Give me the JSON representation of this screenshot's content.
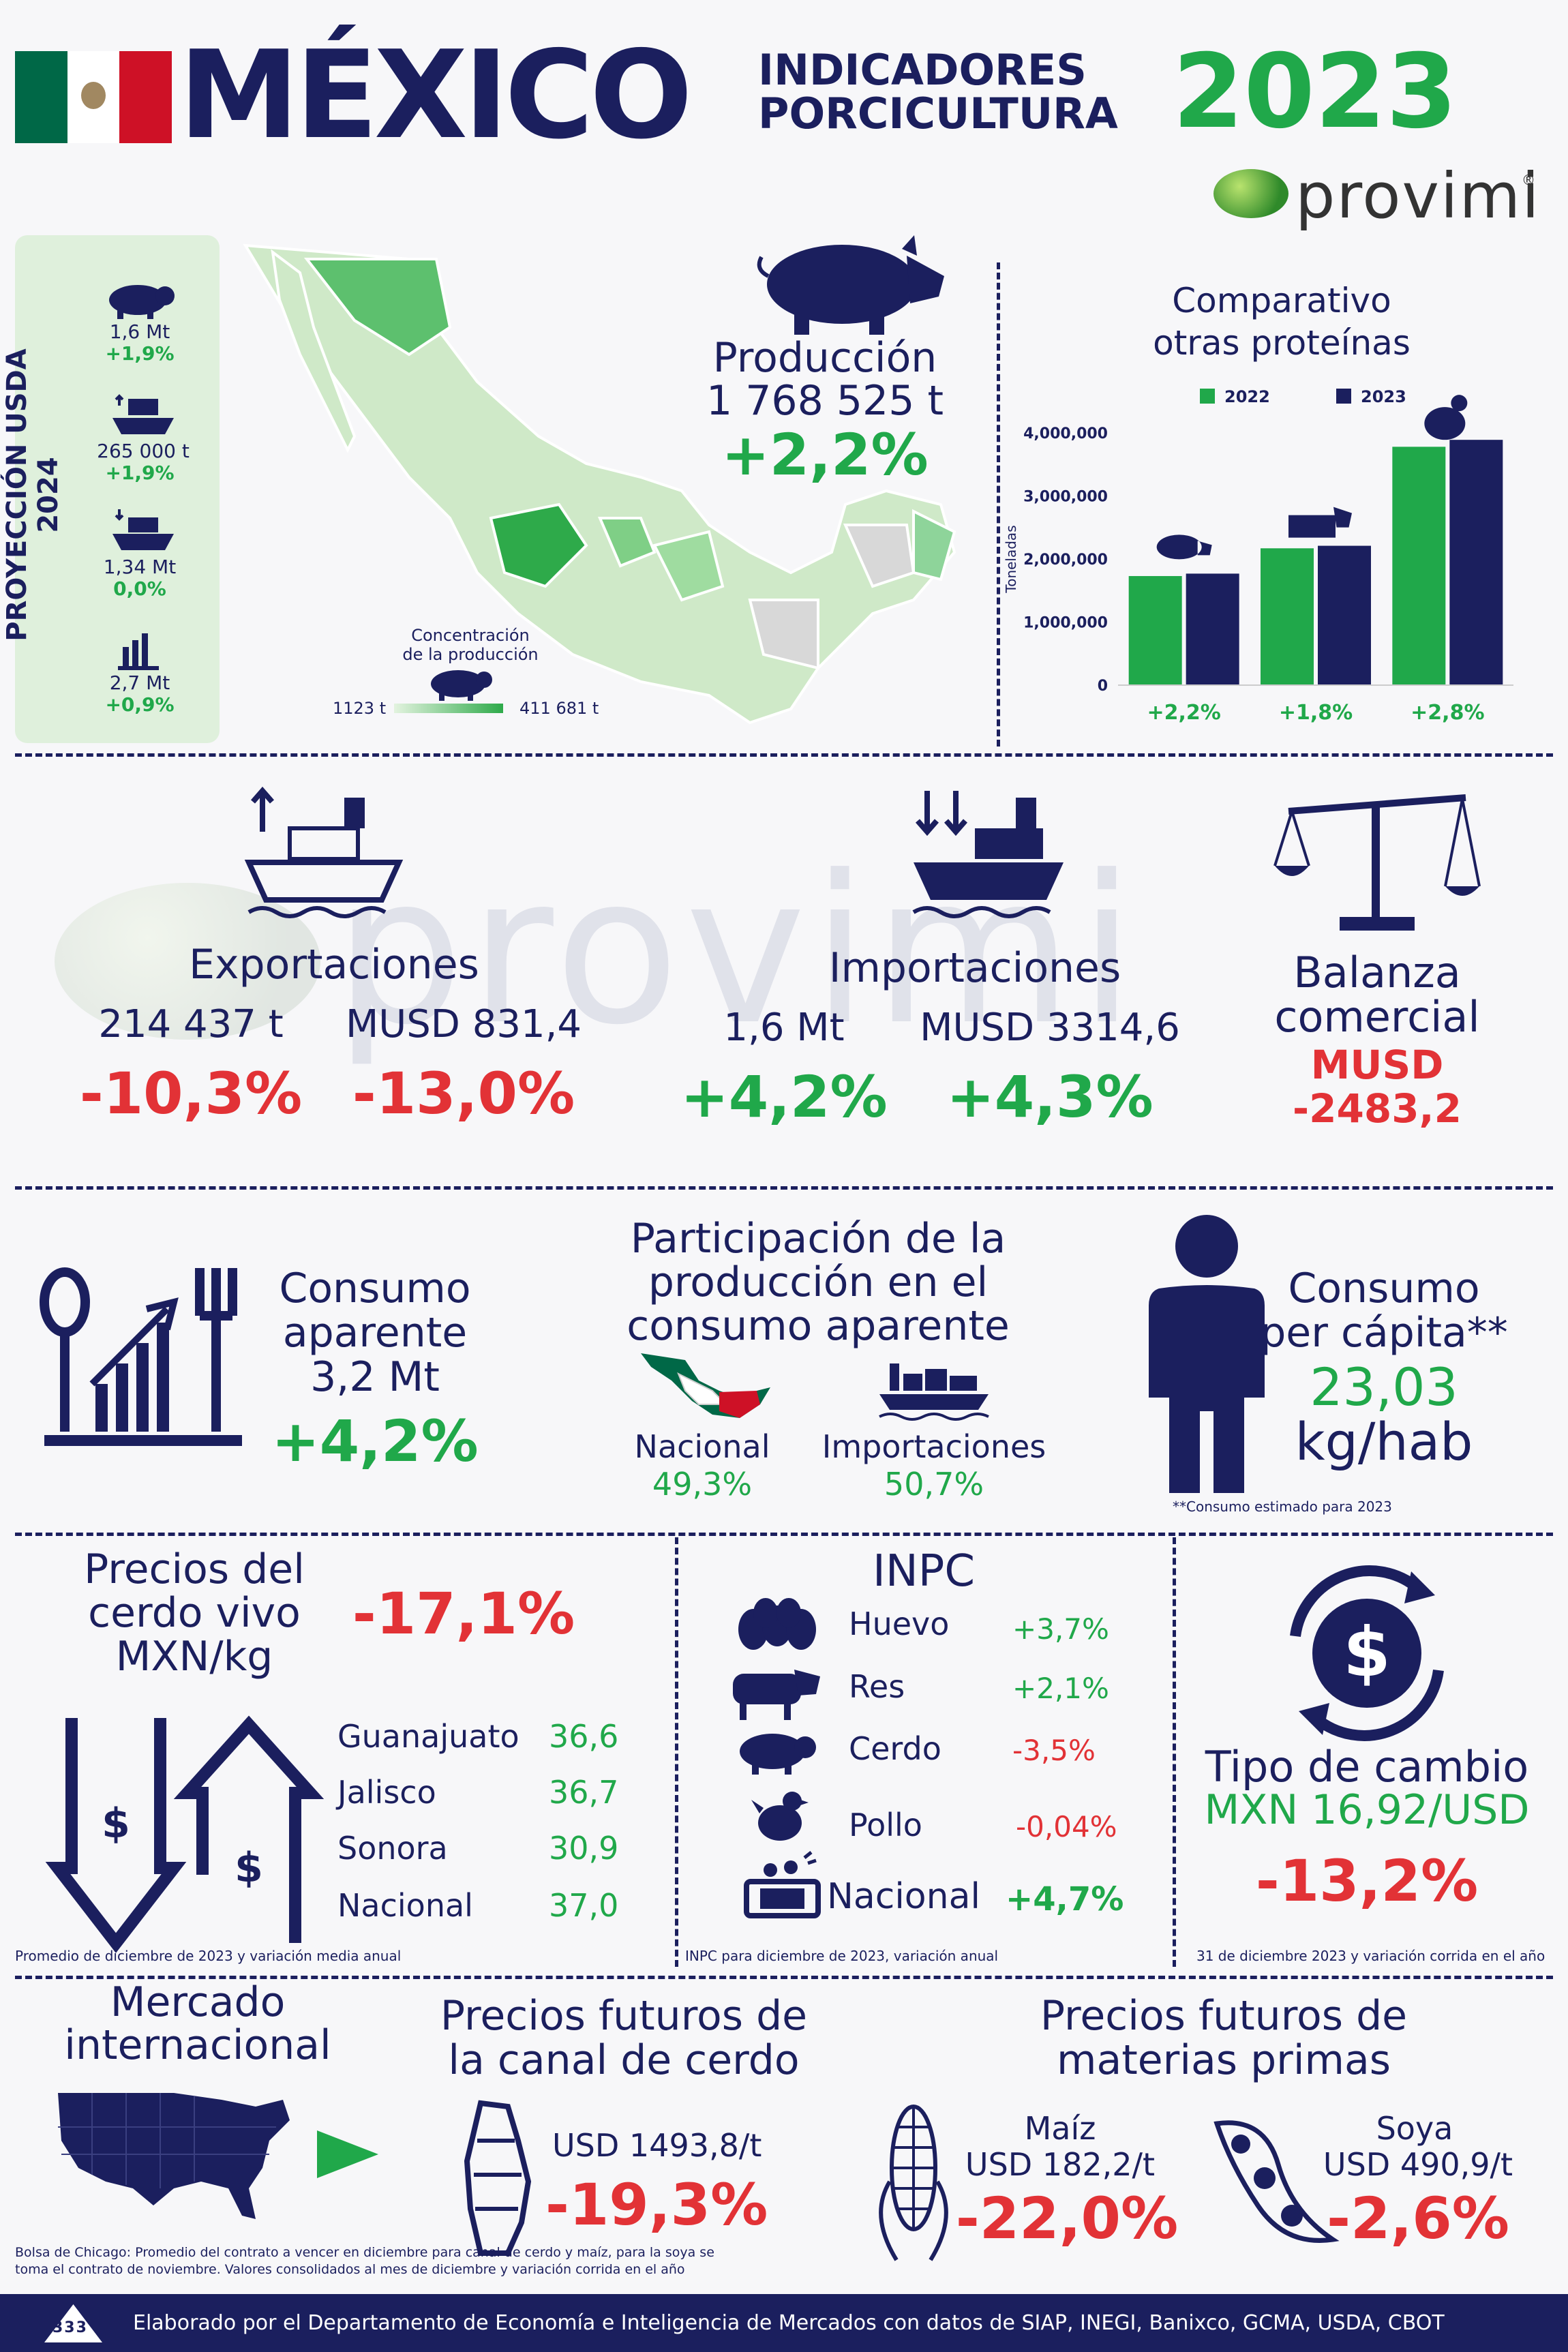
{
  "header": {
    "country": "MÉXICO",
    "line1": "INDICADORES",
    "line2": "PORCICULTURA",
    "year": "2023",
    "brand": "provimi",
    "brand_reg": "®"
  },
  "usda": {
    "title": "PROYECCIÓN USDA 2024",
    "items": [
      {
        "icon": "pig-icon",
        "value": "1,6 Mt",
        "change": "+1,9%"
      },
      {
        "icon": "export-ship-icon",
        "value": "265 000 t",
        "change": "+1,9%"
      },
      {
        "icon": "import-ship-icon",
        "value": "1,34 Mt",
        "change": "0,0%"
      },
      {
        "icon": "consumption-icon",
        "value": "2,7 Mt",
        "change": "+0,9%"
      }
    ]
  },
  "map": {
    "legend_title": "Concentración\nde la producción",
    "legend_min": "1123 t",
    "legend_max": "411 681 t"
  },
  "production": {
    "title": "Producción",
    "value": "1 768 525 t",
    "change": "+2,2%"
  },
  "protein_chart": {
    "title": "Comparativo\notras proteínas"
  },
  "chart_data": {
    "type": "bar",
    "title": "Comparativo otras proteínas",
    "ylabel": "Toneladas",
    "categories": [
      "Cerdo",
      "Res",
      "Pollo"
    ],
    "series": [
      {
        "name": "2022",
        "color": "#20a84a",
        "values": [
          1730000,
          2170000,
          3780000
        ]
      },
      {
        "name": "2023",
        "color": "#1b1f5e",
        "values": [
          1768525,
          2210000,
          3890000
        ]
      }
    ],
    "ylim": [
      0,
      4000000
    ],
    "yticks": [
      "0",
      "1,000,000",
      "2,000,000",
      "3,000,000",
      "4,000,000"
    ],
    "changes": [
      "+2,2%",
      "+1,8%",
      "+2,8%"
    ],
    "grid": false,
    "legend": "top"
  },
  "exports": {
    "title": "Exportaciones",
    "volume": "214 437 t",
    "value": "MUSD 831,4",
    "volume_change": "-10,3%",
    "value_change": "-13,0%"
  },
  "imports": {
    "title": "Importaciones",
    "volume": "1,6 Mt",
    "value": "MUSD 3314,6",
    "volume_change": "+4,2%",
    "value_change": "+4,3%"
  },
  "balance": {
    "title1": "Balanza",
    "title2": "comercial",
    "unit": "MUSD",
    "value": "-2483,2"
  },
  "consumption": {
    "l1": "Consumo",
    "l2": "aparente",
    "value": "3,2 Mt",
    "change": "+4,2%"
  },
  "participation": {
    "l1": "Participación de la",
    "l2": "producción en el",
    "l3": "consumo aparente",
    "national_label": "Nacional",
    "national_value": "49,3%",
    "imports_label": "Importaciones",
    "imports_value": "50,7%"
  },
  "per_capita": {
    "l1": "Consumo",
    "l2": "per cápita**",
    "value": "23,03",
    "unit": "kg/hab",
    "note": "**Consumo estimado para 2023"
  },
  "live_prices": {
    "l1": "Precios del",
    "l2": "cerdo vivo",
    "l3": "MXN/kg",
    "change": "-17,1%",
    "rows": [
      {
        "state": "Guanajuato",
        "price": "36,6"
      },
      {
        "state": "Jalisco",
        "price": "36,7"
      },
      {
        "state": "Sonora",
        "price": "30,9"
      },
      {
        "state": "Nacional",
        "price": "37,0"
      }
    ],
    "note": "Promedio de diciembre de 2023 y variación media anual"
  },
  "inpc": {
    "title": "INPC",
    "rows": [
      {
        "icon": "eggs-icon",
        "label": "Huevo",
        "change": "+3,7%",
        "color": "#20a84a"
      },
      {
        "icon": "cow-icon",
        "label": "Res",
        "change": "+2,1%",
        "color": "#20a84a"
      },
      {
        "icon": "pig-icon",
        "label": "Cerdo",
        "change": "-3,5%",
        "color": "#e23236"
      },
      {
        "icon": "chicken-icon",
        "label": "Pollo",
        "change": "-0,04%",
        "color": "#e23236"
      },
      {
        "icon": "basket-icon",
        "label": "Nacional",
        "change": "+4,7%",
        "color": "#20a84a"
      }
    ],
    "note": "INPC para diciembre de 2023, variación anual"
  },
  "exchange": {
    "title": "Tipo de cambio",
    "value": "MXN 16,92/USD",
    "change": "-13,2%",
    "note": "31 de diciembre 2023 y variación corrida en el año"
  },
  "intl": {
    "l1": "Mercado",
    "l2": "internacional",
    "note1": "Bolsa de Chicago: Promedio del contrato a vencer en diciembre para canal de cerdo y maíz, para la soya se",
    "note2": "toma el contrato de noviembre. Valores consolidados al mes de diciembre y variación corrida en el año"
  },
  "carcass": {
    "l1": "Precios futuros de",
    "l2": "la canal de cerdo",
    "value": "USD 1493,8/t",
    "change": "-19,3%"
  },
  "raw": {
    "l1": "Precios futuros de",
    "l2": "materias primas",
    "corn_label": "Maíz",
    "corn_value": "USD 182,2/t",
    "corn_change": "-22,0%",
    "soy_label": "Soya",
    "soy_value": "USD 490,9/t",
    "soy_change": "-2,6%"
  },
  "footer": {
    "text": "Elaborado por el Departamento de Economía e Inteligencia de Mercados con datos de SIAP, INEGI, Banixco, GCMA, USDA, CBOT",
    "logo": "333"
  },
  "colors": {
    "navy": "#1b1f5e",
    "green": "#20a84a",
    "red": "#e23236",
    "flag_green": "#006847",
    "flag_red": "#ce1126"
  }
}
